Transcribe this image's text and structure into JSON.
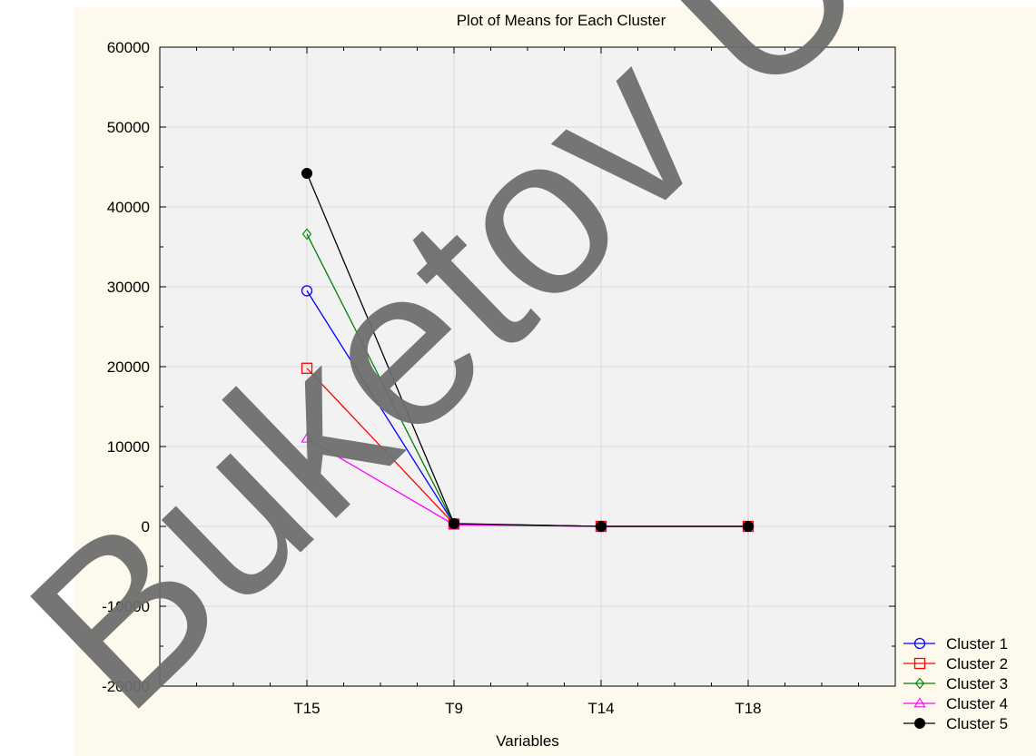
{
  "colors": {
    "page_background": "#fdf9ec",
    "plot_background": "#f2f2f2",
    "grid": "#d8d8d8",
    "watermark": "#6e6e6e"
  },
  "watermark_text": "Buketov Univ",
  "chart_data": {
    "type": "line",
    "title": "Plot of Means for Each Cluster",
    "xlabel": "Variables",
    "ylabel": "",
    "categories": [
      "T15",
      "T9",
      "T14",
      "T18"
    ],
    "ylim": [
      -20000,
      60000
    ],
    "yticks": [
      -20000,
      -10000,
      0,
      10000,
      20000,
      30000,
      40000,
      50000,
      60000
    ],
    "grid": true,
    "legend_position": "bottom-right",
    "series": [
      {
        "name": "Cluster  1",
        "color": "#0000ff",
        "marker": "circle-open",
        "values": [
          29500,
          300,
          0,
          0
        ]
      },
      {
        "name": "Cluster  2",
        "color": "#ff0000",
        "marker": "square-open",
        "values": [
          19800,
          300,
          0,
          0
        ]
      },
      {
        "name": "Cluster  3",
        "color": "#008000",
        "marker": "diamond-open",
        "values": [
          36600,
          300,
          0,
          0
        ]
      },
      {
        "name": "Cluster  4",
        "color": "#ff00ff",
        "marker": "triangle-open",
        "values": [
          11000,
          200,
          0,
          0
        ]
      },
      {
        "name": "Cluster  5",
        "color": "#000000",
        "marker": "circle-filled",
        "values": [
          44200,
          350,
          0,
          0
        ]
      }
    ]
  }
}
